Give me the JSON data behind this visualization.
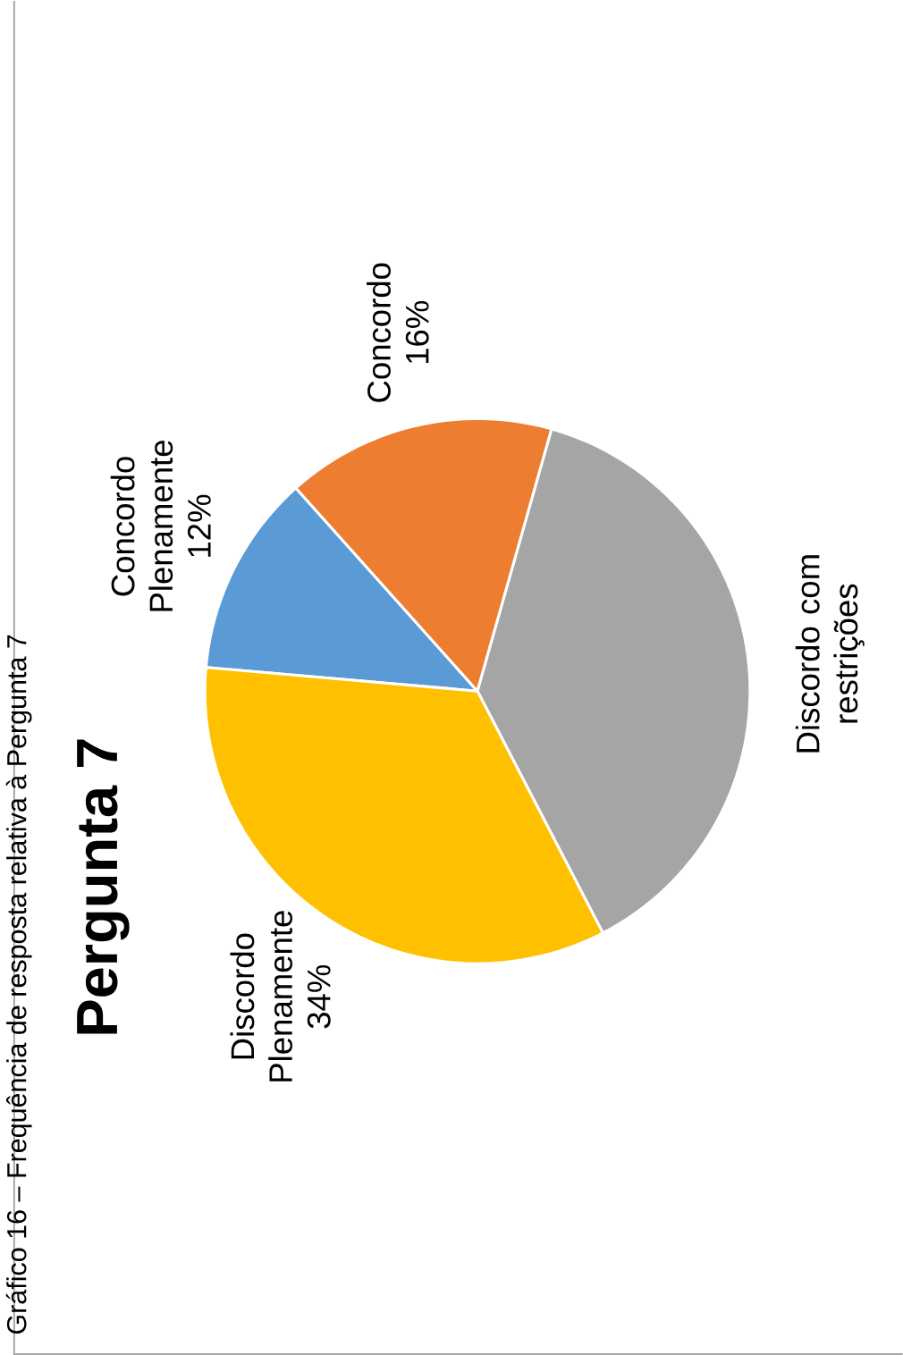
{
  "chart_data": {
    "type": "pie",
    "title": "Pergunta 7",
    "annotations": [
      "Gráfico 16 – Frequência de resposta relativa à Pergunta 7"
    ],
    "categories": [
      "Concordo Plenamente",
      "Concordo",
      "Discordo com restrições",
      "Discordo Plenamente"
    ],
    "values": [
      12,
      16,
      38,
      34
    ],
    "value_labels": [
      "12%",
      "16%",
      null,
      "34%"
    ],
    "colors": [
      "#5b9bd5",
      "#ed7d31",
      "#a5a5a5",
      "#ffc000"
    ],
    "legend": false
  }
}
